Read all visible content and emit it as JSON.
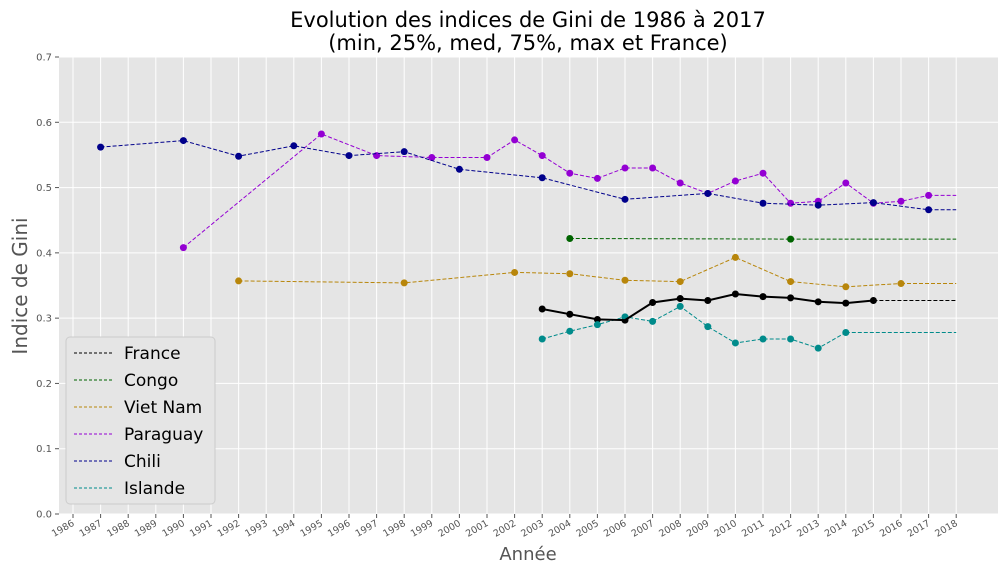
{
  "chart_data": {
    "type": "line",
    "title": "Evolution des indices de Gini de 1986 à 2017",
    "subtitle": "(min, 25%, med, 75%, max et France)",
    "xlabel": "Année",
    "ylabel": "Indice de Gini",
    "xlim": [
      1986,
      2018
    ],
    "ylim": [
      0,
      0.7
    ],
    "x_ticks": [
      1986,
      1987,
      1988,
      1989,
      1990,
      1991,
      1992,
      1993,
      1994,
      1995,
      1996,
      1997,
      1998,
      1999,
      2000,
      2001,
      2002,
      2003,
      2004,
      2005,
      2006,
      2007,
      2008,
      2009,
      2010,
      2011,
      2012,
      2013,
      2014,
      2015,
      2016,
      2017,
      2018
    ],
    "y_ticks": [
      0.0,
      0.1,
      0.2,
      0.3,
      0.4,
      0.5,
      0.6,
      0.7
    ],
    "grid": true,
    "legend_position": "bottom-left",
    "series": [
      {
        "name": "France",
        "color": "#000000",
        "points": [
          [
            2003,
            0.314
          ],
          [
            2004,
            0.306
          ],
          [
            2005,
            0.298
          ],
          [
            2006,
            0.297
          ],
          [
            2007,
            0.324
          ],
          [
            2008,
            0.33
          ],
          [
            2009,
            0.327
          ],
          [
            2010,
            0.337
          ],
          [
            2011,
            0.333
          ],
          [
            2012,
            0.331
          ],
          [
            2013,
            0.325
          ],
          [
            2014,
            0.323
          ],
          [
            2015,
            0.327
          ]
        ],
        "extend_to": 2018
      },
      {
        "name": "Congo",
        "color": "#006400",
        "points": [
          [
            2004,
            0.422
          ],
          [
            2012,
            0.421
          ]
        ],
        "extend_to": 2018
      },
      {
        "name": "Viet Nam",
        "color": "#b8860b",
        "points": [
          [
            1992,
            0.357
          ],
          [
            1998,
            0.354
          ],
          [
            2002,
            0.37
          ],
          [
            2004,
            0.368
          ],
          [
            2006,
            0.358
          ],
          [
            2008,
            0.356
          ],
          [
            2010,
            0.393
          ],
          [
            2012,
            0.356
          ],
          [
            2014,
            0.348
          ],
          [
            2016,
            0.353
          ]
        ],
        "extend_to": 2018
      },
      {
        "name": "Paraguay",
        "color": "#9400d3",
        "points": [
          [
            1990,
            0.408
          ],
          [
            1995,
            0.582
          ],
          [
            1997,
            0.549
          ],
          [
            1999,
            0.546
          ],
          [
            2001,
            0.546
          ],
          [
            2002,
            0.573
          ],
          [
            2003,
            0.549
          ],
          [
            2004,
            0.522
          ],
          [
            2005,
            0.514
          ],
          [
            2006,
            0.53
          ],
          [
            2007,
            0.53
          ],
          [
            2008,
            0.507
          ],
          [
            2009,
            0.491
          ],
          [
            2010,
            0.51
          ],
          [
            2011,
            0.522
          ],
          [
            2012,
            0.476
          ],
          [
            2013,
            0.479
          ],
          [
            2014,
            0.507
          ],
          [
            2015,
            0.476
          ],
          [
            2016,
            0.479
          ],
          [
            2017,
            0.488
          ]
        ],
        "extend_to": 2018
      },
      {
        "name": "Chili",
        "color": "#00008b",
        "points": [
          [
            1987,
            0.562
          ],
          [
            1990,
            0.572
          ],
          [
            1992,
            0.548
          ],
          [
            1994,
            0.564
          ],
          [
            1996,
            0.549
          ],
          [
            1998,
            0.555
          ],
          [
            2000,
            0.528
          ],
          [
            2003,
            0.515
          ],
          [
            2006,
            0.482
          ],
          [
            2009,
            0.491
          ],
          [
            2011,
            0.476
          ],
          [
            2013,
            0.473
          ],
          [
            2015,
            0.477
          ],
          [
            2017,
            0.466
          ]
        ],
        "extend_to": 2018
      },
      {
        "name": "Islande",
        "color": "#008b8b",
        "points": [
          [
            2003,
            0.268
          ],
          [
            2004,
            0.28
          ],
          [
            2005,
            0.29
          ],
          [
            2006,
            0.302
          ],
          [
            2007,
            0.295
          ],
          [
            2008,
            0.318
          ],
          [
            2009,
            0.287
          ],
          [
            2010,
            0.262
          ],
          [
            2011,
            0.268
          ],
          [
            2012,
            0.268
          ],
          [
            2013,
            0.254
          ],
          [
            2014,
            0.278
          ]
        ],
        "extend_to": 2018
      }
    ]
  }
}
